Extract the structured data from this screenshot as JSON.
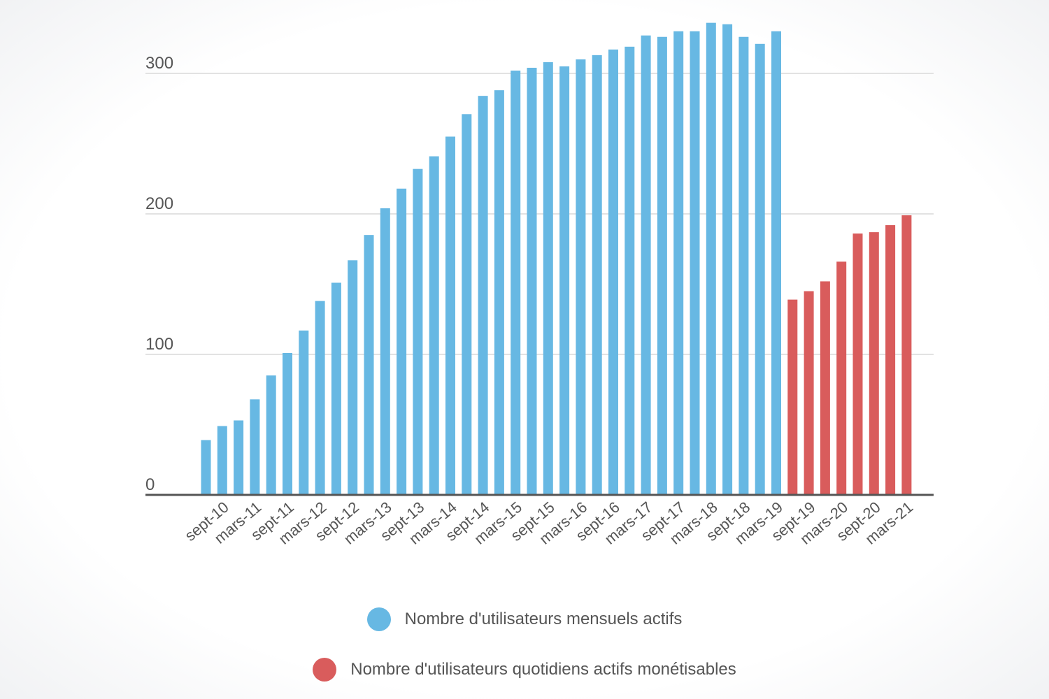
{
  "chart_data": {
    "type": "bar",
    "title": "",
    "xlabel": "",
    "ylabel": "",
    "ylim": [
      0,
      340
    ],
    "yticks": [
      0,
      100,
      200,
      300
    ],
    "grid": true,
    "legend_position": "bottom",
    "x_tick_labels": [
      "sept-10",
      "mars-11",
      "sept-11",
      "mars-12",
      "sept-12",
      "mars-13",
      "sept-13",
      "mars-14",
      "sept-14",
      "mars-15",
      "sept-15",
      "mars-16",
      "sept-16",
      "mars-17",
      "sept-17",
      "mars-18",
      "sept-18",
      "mars-19",
      "sept-19",
      "mars-20",
      "sept-20",
      "mars-21"
    ],
    "series": [
      {
        "name": "Nombre d'utilisateurs mensuels actifs",
        "color": "#67b8e3",
        "values": [
          39,
          49,
          53,
          68,
          85,
          101,
          117,
          138,
          151,
          167,
          185,
          204,
          218,
          232,
          241,
          255,
          271,
          284,
          288,
          302,
          304,
          308,
          305,
          310,
          313,
          317,
          319,
          327,
          326,
          330,
          330,
          336,
          335,
          326,
          321,
          330
        ]
      },
      {
        "name": "Nombre d'utilisateurs quotidiens actifs monétisables",
        "color": "#d95c5c",
        "values": [
          139,
          145,
          152,
          166,
          186,
          187,
          192,
          199
        ]
      }
    ]
  }
}
